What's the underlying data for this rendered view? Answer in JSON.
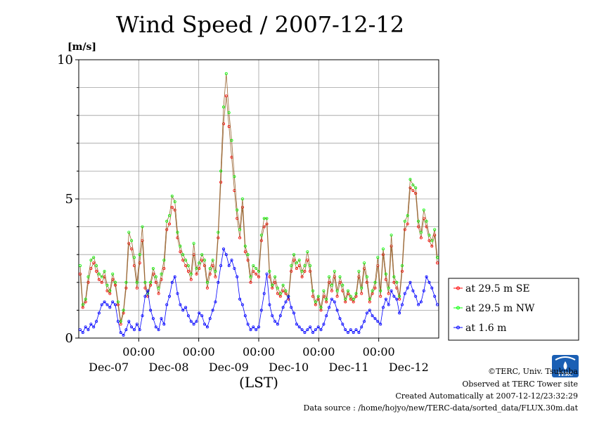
{
  "chart_data": {
    "type": "line",
    "title": "Wind Speed / 2007-12-12",
    "ylabel": "[m/s]",
    "xlabel": "(LST)",
    "ylim": [
      0,
      10
    ],
    "y_ticks": [
      "0",
      "5",
      "10"
    ],
    "x_range_days": [
      "Dec-06",
      "Dec-12"
    ],
    "x_tick_time_label": "00:00",
    "x_ticks": [
      "Dec-07",
      "Dec-08",
      "Dec-09",
      "Dec-10",
      "Dec-11",
      "Dec-12"
    ],
    "grid": true,
    "legend_position": "right",
    "series": [
      {
        "name": "at 29.5 m SE",
        "color": "#ff0000",
        "line_color": "#996633",
        "values": [
          2.3,
          1.1,
          1.3,
          2.0,
          2.5,
          2.7,
          2.4,
          2.1,
          2.0,
          2.2,
          1.7,
          1.6,
          2.1,
          1.9,
          1.2,
          0.5,
          0.9,
          1.8,
          3.4,
          3.2,
          2.6,
          1.8,
          2.7,
          3.5,
          1.8,
          1.5,
          1.9,
          2.3,
          2.0,
          1.6,
          2.1,
          2.5,
          3.9,
          4.1,
          4.7,
          4.6,
          3.6,
          3.1,
          2.8,
          2.6,
          2.4,
          2.1,
          3.0,
          2.3,
          2.5,
          2.8,
          2.6,
          1.8,
          2.3,
          2.6,
          2.2,
          3.6,
          5.6,
          7.7,
          8.7,
          7.6,
          6.5,
          5.3,
          4.3,
          3.6,
          4.7,
          3.1,
          2.8,
          2.0,
          2.4,
          2.3,
          2.2,
          3.5,
          4.0,
          4.1,
          2.2,
          1.8,
          2.0,
          1.6,
          1.5,
          1.7,
          1.6,
          1.4,
          2.4,
          2.8,
          2.5,
          2.6,
          2.2,
          2.4,
          2.8,
          2.4,
          1.5,
          1.2,
          1.4,
          1.0,
          1.5,
          1.3,
          2.0,
          1.7,
          2.2,
          1.5,
          2.0,
          1.7,
          1.3,
          1.6,
          1.4,
          1.3,
          1.5,
          2.2,
          1.6,
          2.5,
          2.0,
          1.3,
          1.6,
          1.8,
          2.6,
          1.5,
          3.0,
          2.1,
          1.6,
          3.3,
          2.0,
          1.8,
          1.4,
          2.4,
          3.9,
          4.1,
          5.4,
          5.3,
          5.2,
          4.0,
          3.6,
          4.3,
          4.0,
          3.5,
          3.3,
          3.7,
          2.7
        ]
      },
      {
        "name": "at 29.5 m NW",
        "color": "#00ff00",
        "line_color": "#996633",
        "values": [
          2.6,
          1.2,
          1.4,
          2.2,
          2.8,
          2.9,
          2.6,
          2.3,
          2.2,
          2.4,
          1.9,
          1.7,
          2.3,
          2.0,
          1.3,
          0.6,
          1.0,
          2.0,
          3.8,
          3.5,
          2.9,
          2.0,
          3.0,
          4.0,
          2.0,
          1.6,
          2.0,
          2.5,
          2.2,
          1.8,
          2.3,
          2.8,
          4.2,
          4.4,
          5.1,
          4.9,
          3.8,
          3.3,
          3.0,
          2.8,
          2.6,
          2.3,
          3.4,
          2.5,
          2.7,
          3.0,
          2.8,
          2.0,
          2.5,
          2.8,
          2.4,
          3.8,
          6.0,
          8.3,
          9.5,
          8.1,
          7.1,
          5.8,
          4.6,
          3.9,
          5.0,
          3.3,
          3.0,
          2.2,
          2.6,
          2.5,
          2.4,
          3.7,
          4.3,
          4.3,
          2.4,
          1.9,
          2.2,
          1.8,
          1.6,
          1.9,
          1.7,
          1.5,
          2.6,
          3.0,
          2.7,
          2.8,
          2.4,
          2.6,
          3.1,
          2.6,
          1.7,
          1.3,
          1.5,
          1.1,
          1.7,
          1.4,
          2.2,
          1.9,
          2.4,
          1.7,
          2.2,
          1.9,
          1.4,
          1.7,
          1.5,
          1.4,
          1.6,
          2.4,
          1.8,
          2.7,
          2.2,
          1.4,
          1.7,
          2.0,
          2.9,
          1.7,
          3.2,
          2.3,
          1.8,
          3.7,
          2.2,
          2.0,
          1.5,
          2.6,
          4.2,
          4.4,
          5.7,
          5.5,
          5.4,
          4.2,
          3.8,
          4.6,
          4.2,
          3.7,
          3.5,
          3.9,
          2.9
        ]
      },
      {
        "name": "at 1.6 m",
        "color": "#0000ff",
        "line_color": "#0000ff",
        "values": [
          0.3,
          0.2,
          0.4,
          0.3,
          0.5,
          0.4,
          0.6,
          0.9,
          1.2,
          1.3,
          1.2,
          1.1,
          1.3,
          1.2,
          0.6,
          0.2,
          0.1,
          0.3,
          0.6,
          0.4,
          0.3,
          0.5,
          0.3,
          0.8,
          1.5,
          1.7,
          1.0,
          0.7,
          0.4,
          0.3,
          0.7,
          0.5,
          1.2,
          1.5,
          2.0,
          2.2,
          1.6,
          1.2,
          1.0,
          1.1,
          0.8,
          0.6,
          0.5,
          0.6,
          0.9,
          0.8,
          0.5,
          0.4,
          0.7,
          1.0,
          1.3,
          2.0,
          2.6,
          3.2,
          3.0,
          2.6,
          2.8,
          2.5,
          2.2,
          1.4,
          1.2,
          0.8,
          0.5,
          0.3,
          0.4,
          0.3,
          0.4,
          1.0,
          1.6,
          2.3,
          1.2,
          0.8,
          0.6,
          0.5,
          0.8,
          1.1,
          1.3,
          1.5,
          1.1,
          0.9,
          0.5,
          0.4,
          0.3,
          0.2,
          0.3,
          0.4,
          0.2,
          0.3,
          0.4,
          0.3,
          0.5,
          0.8,
          1.1,
          1.4,
          1.3,
          1.0,
          0.7,
          0.5,
          0.3,
          0.2,
          0.3,
          0.2,
          0.3,
          0.2,
          0.4,
          0.6,
          0.9,
          1.0,
          0.8,
          0.7,
          0.6,
          0.5,
          1.1,
          1.4,
          1.2,
          1.7,
          1.5,
          1.4,
          0.9,
          1.2,
          1.6,
          1.8,
          2.0,
          1.7,
          1.5,
          1.2,
          1.3,
          1.7,
          2.2,
          2.0,
          1.8,
          1.5,
          1.2
        ]
      }
    ]
  },
  "legend": {
    "items": [
      "at 29.5 m SE",
      "at 29.5 m NW",
      "at 1.6 m"
    ]
  },
  "footer": {
    "copyright": "©TERC, Univ. Tsukuba",
    "observed": "Observed at TERC Tower site",
    "created": "Created Automatically at 2007-12-12/23:32:29",
    "source": "Data source : /home/hojyo/new/TERC-data/sorted_data/FLUX.30m.dat"
  },
  "logo": {
    "text": "TERC",
    "color": "#1a5fb4"
  }
}
